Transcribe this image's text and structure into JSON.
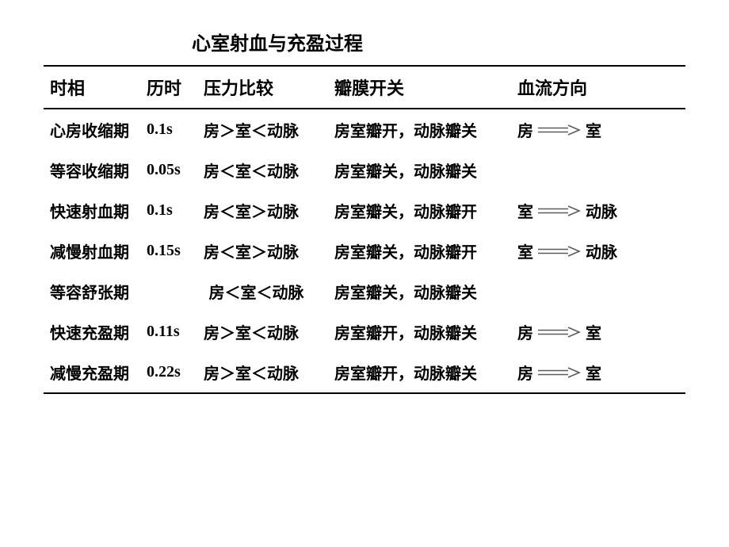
{
  "title": "心室射血与充盈过程",
  "columns": {
    "phase": "时相",
    "duration": "历时",
    "pressure": "压力比较",
    "valve": "瓣膜开关",
    "flow": "血流方向"
  },
  "arrow": {
    "color": "#5b5b5b",
    "double_stroke": true
  },
  "rows": [
    {
      "phase": "心房收缩期",
      "duration": "0.1s",
      "pressure": "房＞室＜动脉",
      "valve": "房室瓣开，动脉瓣关",
      "flow_from": "房",
      "flow_to": "室",
      "has_flow": true
    },
    {
      "phase": "等容收缩期",
      "duration": "0.05s",
      "pressure": "房＜室＜动脉",
      "valve": "房室瓣关，动脉瓣关",
      "flow_from": "",
      "flow_to": "",
      "has_flow": false
    },
    {
      "phase": "快速射血期",
      "duration": "0.1s",
      "pressure": "房＜室＞动脉",
      "valve": "房室瓣关，动脉瓣开",
      "flow_from": "室",
      "flow_to": "动脉",
      "has_flow": true
    },
    {
      "phase": "减慢射血期",
      "duration": "0.15s",
      "pressure": "房＜室＞动脉",
      "valve": "房室瓣关，动脉瓣开",
      "flow_from": "室",
      "flow_to": "动脉",
      "has_flow": true
    },
    {
      "phase": "等容舒张期",
      "duration": "",
      "pressure": "房＜室＜动脉",
      "valve": "房室瓣关，动脉瓣关",
      "flow_from": "",
      "flow_to": "",
      "has_flow": false,
      "merged_dur_press": true
    },
    {
      "phase": "快速充盈期",
      "duration": "0.11s",
      "pressure": "房＞室＜动脉",
      "valve": "房室瓣开，动脉瓣关",
      "flow_from": "房",
      "flow_to": "室",
      "has_flow": true
    },
    {
      "phase": "减慢充盈期",
      "duration": "0.22s",
      "pressure": "房＞室＜动脉",
      "valve": "房室瓣开，动脉瓣关",
      "flow_from": "房",
      "flow_to": "室",
      "has_flow": true
    }
  ]
}
